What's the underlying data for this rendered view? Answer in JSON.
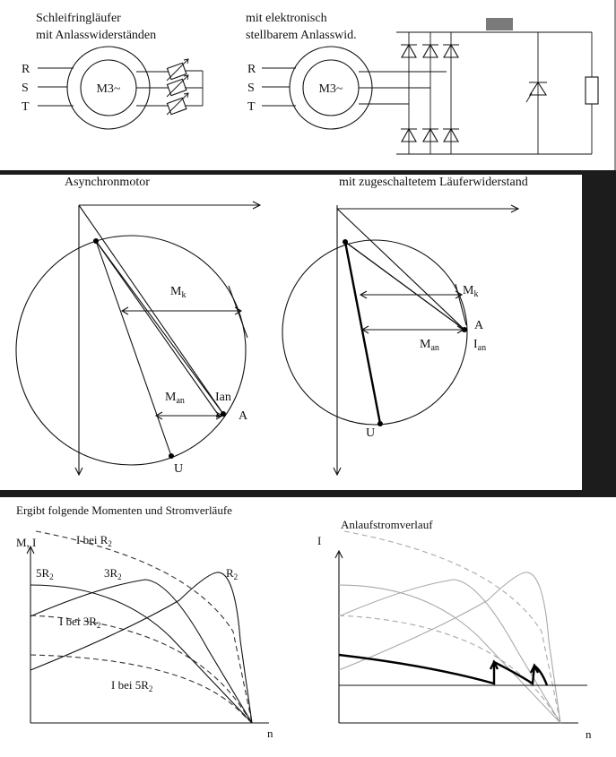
{
  "panel1": {
    "left_title_line1": "Schleifringläufer",
    "left_title_line2": "mit Anlasswiderständen",
    "right_title_line1": "mit elektronisch",
    "right_title_line2": "stellbarem Anlasswid.",
    "phase_r": "R",
    "phase_s": "S",
    "phase_t": "T",
    "motor_label": "M3~",
    "colors": {
      "resistor_block": "#7a7a7a"
    }
  },
  "panel2": {
    "left_title": "Asynchronmotor",
    "right_title": "mit zugeschaltetem Läuferwiderstand",
    "mk_main": "M",
    "mk_sub": "k",
    "man_main": "M",
    "man_sub": "an",
    "ian_left": "Ian",
    "ian_right_main": "I",
    "ian_right_sub": "an",
    "point_a": "A",
    "point_u": "U"
  },
  "panel3": {
    "heading": "Ergibt folgende Momenten und Stromverläufe",
    "left_yaxis": "M, I",
    "label_i_r2_main": "I bei R",
    "label_i_r2_sub": "2",
    "label_5r2_main": "5R",
    "label_5r2_sub": "2",
    "label_3r2_main": "3R",
    "label_3r2_sub": "2",
    "label_r2_main": "R",
    "label_r2_sub": "2",
    "label_i_3r2_main": "I bei 3R",
    "label_i_3r2_sub": "2",
    "label_i_5r2_main": "I bei 5R",
    "label_i_5r2_sub": "2",
    "xaxis": "n",
    "right_heading": "Anlaufstromverlauf",
    "right_yaxis": "I",
    "right_xaxis": "n"
  }
}
